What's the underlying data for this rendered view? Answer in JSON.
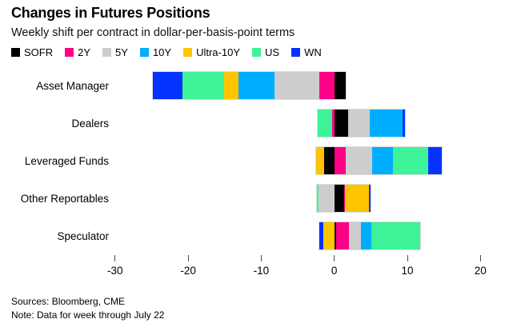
{
  "header": {
    "title": "Changes in Futures Positions",
    "subtitle": "Weekly shift per contract in dollar-per-basis-point terms"
  },
  "footer": {
    "sources": "Sources: Bloomberg, CME",
    "note": "Note: Data for week through July 22"
  },
  "chart_data": {
    "type": "bar",
    "orientation": "horizontal",
    "stacked": true,
    "title": "Changes in Futures Positions",
    "subtitle": "Weekly shift per contract in dollar-per-basis-point terms",
    "xlabel": "",
    "ylabel": "",
    "xlim": [
      -30.5,
      25
    ],
    "x_ticks": [
      -30,
      -20,
      -10,
      0,
      10,
      20
    ],
    "grid": false,
    "legend_position": "top",
    "categories": [
      "Asset Manager",
      "Dealers",
      "Leveraged Funds",
      "Other Reportables",
      "Speculator"
    ],
    "series": [
      {
        "name": "SOFR",
        "color": "#000000",
        "values": [
          1.6,
          1.9,
          -1.4,
          1.3,
          0.2
        ]
      },
      {
        "name": "2Y",
        "color": "#FF0087",
        "values": [
          -2.0,
          -0.3,
          1.6,
          0.2,
          1.8
        ]
      },
      {
        "name": "5Y",
        "color": "#CDCDCD",
        "values": [
          -6.2,
          3.0,
          3.6,
          -2.2,
          1.6
        ]
      },
      {
        "name": "10Y",
        "color": "#00AEFF",
        "values": [
          -4.9,
          4.4,
          2.8,
          0.0,
          1.5
        ]
      },
      {
        "name": "Ultra-10Y",
        "color": "#FFC400",
        "values": [
          -2.0,
          0.0,
          -1.1,
          3.2,
          -1.5
        ]
      },
      {
        "name": "US",
        "color": "#3EF397",
        "values": [
          -5.7,
          -2.0,
          4.9,
          -0.2,
          6.7
        ]
      },
      {
        "name": "WN",
        "color": "#0433FF",
        "values": [
          -4.0,
          0.4,
          1.8,
          0.3,
          -0.6
        ]
      }
    ]
  }
}
